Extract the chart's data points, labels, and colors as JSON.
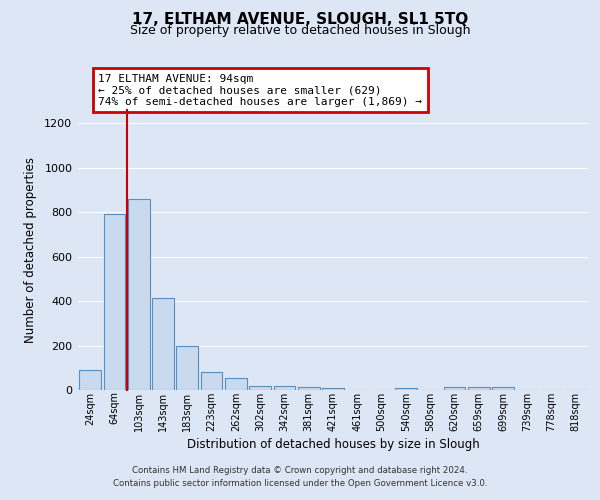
{
  "title": "17, ELTHAM AVENUE, SLOUGH, SL1 5TQ",
  "subtitle": "Size of property relative to detached houses in Slough",
  "xlabel": "Distribution of detached houses by size in Slough",
  "ylabel": "Number of detached properties",
  "bar_labels": [
    "24sqm",
    "64sqm",
    "103sqm",
    "143sqm",
    "183sqm",
    "223sqm",
    "262sqm",
    "302sqm",
    "342sqm",
    "381sqm",
    "421sqm",
    "461sqm",
    "500sqm",
    "540sqm",
    "580sqm",
    "620sqm",
    "659sqm",
    "699sqm",
    "739sqm",
    "778sqm",
    "818sqm"
  ],
  "bar_values": [
    90,
    790,
    860,
    415,
    200,
    82,
    52,
    20,
    18,
    12,
    10,
    0,
    0,
    8,
    0,
    12,
    15,
    15,
    0,
    0,
    0
  ],
  "bar_color": "#c9d9ee",
  "bar_edge_color": "#5a8fc0",
  "vline_x_index": 2,
  "vline_color": "#cc0000",
  "ylim": [
    0,
    1260
  ],
  "yticks": [
    0,
    200,
    400,
    600,
    800,
    1000,
    1200
  ],
  "annotation_title": "17 ELTHAM AVENUE: 94sqm",
  "annotation_line1": "← 25% of detached houses are smaller (629)",
  "annotation_line2": "74% of semi-detached houses are larger (1,869) →",
  "annotation_box_color": "#cc0000",
  "footer_line1": "Contains HM Land Registry data © Crown copyright and database right 2024.",
  "footer_line2": "Contains public sector information licensed under the Open Government Licence v3.0.",
  "bg_color": "#dce6f5",
  "plot_bg_color": "#dce6f5",
  "grid_color": "#ffffff",
  "title_fontsize": 11,
  "subtitle_fontsize": 9
}
